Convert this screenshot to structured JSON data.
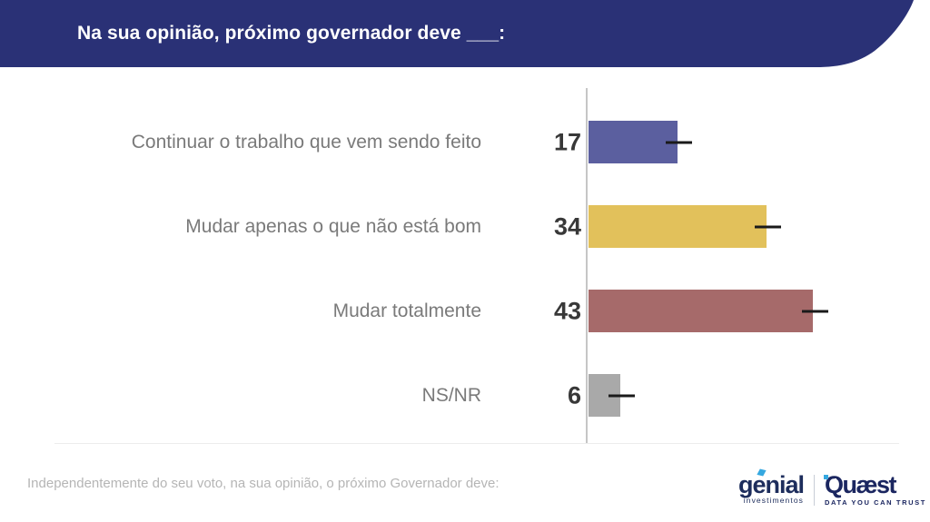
{
  "header": {
    "title": "Na sua opinião, próximo governador deve ___:",
    "bg_color": "#2a3176"
  },
  "chart_data": {
    "type": "bar",
    "orientation": "horizontal",
    "title": "Na sua opinião, próximo governador deve ___:",
    "categories": [
      "Continuar o trabalho que vem sendo feito",
      "Mudar apenas o que não está bom",
      "Mudar totalmente",
      "NS/NR"
    ],
    "values": [
      17,
      34,
      43,
      6
    ],
    "bar_colors": [
      "#5b5f9f",
      "#e2c15b",
      "#a66a6a",
      "#a9a9a9"
    ],
    "error_bars": true,
    "error_bar_halfwidth_pct": 2.5,
    "xlim": [
      0,
      65
    ],
    "grid": false,
    "legend": false,
    "axis_color": "#c6c6c6",
    "value_label_color": "#383838",
    "category_label_color": "#7a7a7a"
  },
  "footer": {
    "note": "Independentemente do seu voto, na sua opinião, o próximo Governador deve:"
  },
  "logos": {
    "genial": {
      "wordmark": "genial",
      "subtitle": "investimentos",
      "color": "#1d2d5c",
      "accent_color": "#35a8e0"
    },
    "quaest": {
      "wordmark": "Quæst",
      "tagline": "DATA YOU CAN TRUST",
      "color": "#1b2660",
      "accent_color": "#35a8e0"
    }
  }
}
